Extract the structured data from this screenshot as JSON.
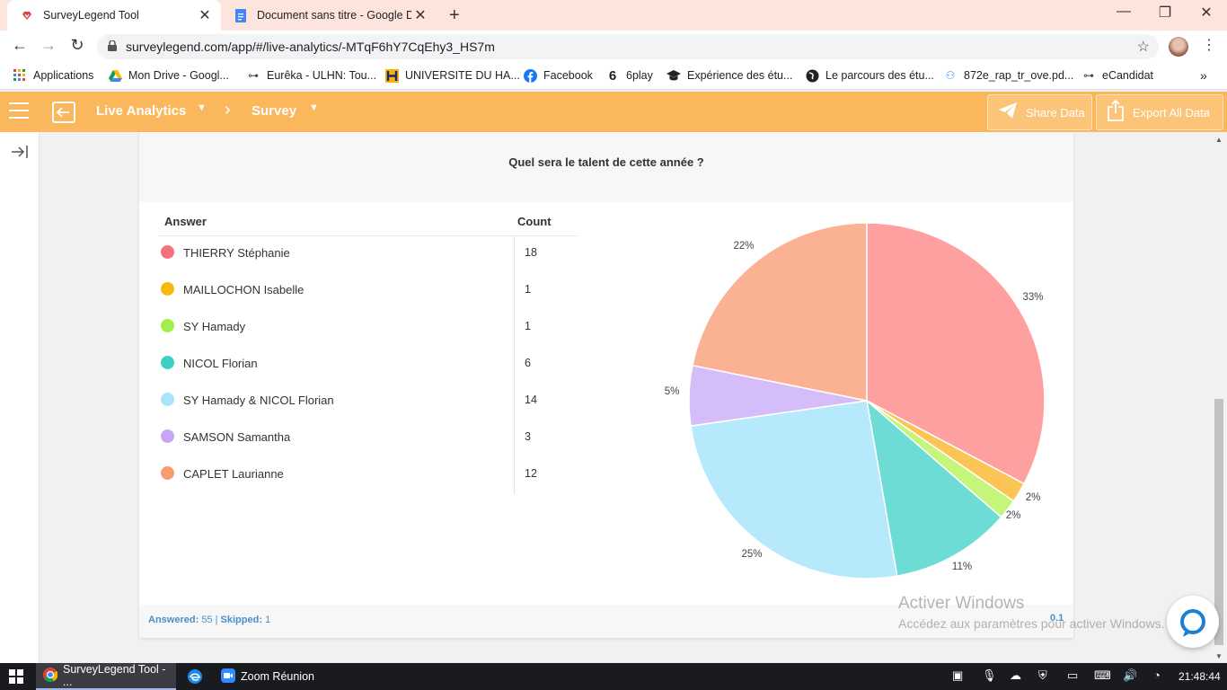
{
  "browser": {
    "tabs": [
      {
        "title": "SurveyLegend Tool",
        "active": true
      },
      {
        "title": "Document sans titre - Google Do",
        "active": false
      }
    ],
    "url": "surveylegend.com/app/#/live-analytics/-MTqF6hY7CqEhy3_HS7m",
    "bookmarks": [
      "Applications",
      "Mon Drive - Googl...",
      "Eurêka - ULHN: Tou...",
      "UNIVERSITE DU HA...",
      "Facebook",
      "6play",
      "Expérience des étu...",
      "Le parcours des étu...",
      "872e_rap_tr_ove.pd...",
      "eCandidat"
    ]
  },
  "appbar": {
    "section": "Live Analytics",
    "survey": "Survey",
    "share_label": "Share Data",
    "export_label": "Export All Data",
    "color": "#fbb75b"
  },
  "card": {
    "question": "Quel sera le talent de cette année ?",
    "answer_header": "Answer",
    "count_header": "Count",
    "answered_label": "Answered:",
    "answered_value": "55",
    "skipped_label": "Skipped:",
    "skipped_value": "1",
    "page": "0.1"
  },
  "chart_data": {
    "type": "pie",
    "categories": [
      "THIERRY Stéphanie",
      "MAILLOCHON Isabelle",
      "SY Hamady",
      "NICOL Florian",
      "SY Hamady & NICOL Florian",
      "SAMSON Samantha",
      "CAPLET Laurianne"
    ],
    "values": [
      18,
      1,
      1,
      6,
      14,
      3,
      12
    ],
    "labels": [
      "33%",
      "2%",
      "2%",
      "11%",
      "25%",
      "5%",
      "22%"
    ],
    "legend_colors": [
      "#f6727a",
      "#f9b712",
      "#a4ee4c",
      "#3ecfc4",
      "#a9e4fb",
      "#c9a6f5",
      "#f89a72"
    ],
    "slice_colors": [
      "#fea09f",
      "#fcc355",
      "#c5f57a",
      "#6ddcd5",
      "#b5e9fb",
      "#d5bdf9",
      "#fbb292"
    ]
  },
  "watermark": {
    "line1": "Activer Windows",
    "line2": "Accédez aux paramètres pour activer Windows."
  },
  "taskbar": {
    "items": [
      "SurveyLegend Tool - ...",
      "Zoom Réunion"
    ],
    "clock": "21:48:44"
  }
}
